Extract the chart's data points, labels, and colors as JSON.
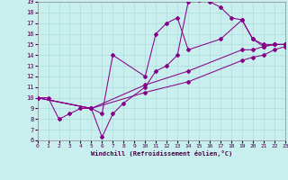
{
  "xlabel": "Windchill (Refroidissement éolien,°C)",
  "bg_color": "#c8eeee",
  "grid_color": "#aadddd",
  "line_color": "#880088",
  "tick_color": "#440044",
  "xlim": [
    0,
    23
  ],
  "ylim": [
    6,
    19
  ],
  "xticks": [
    0,
    1,
    2,
    3,
    4,
    5,
    6,
    7,
    8,
    9,
    10,
    11,
    12,
    13,
    14,
    15,
    16,
    17,
    18,
    19,
    20,
    21,
    22,
    23
  ],
  "yticks": [
    6,
    7,
    8,
    9,
    10,
    11,
    12,
    13,
    14,
    15,
    16,
    17,
    18,
    19
  ],
  "curve1_x": [
    0,
    1,
    2,
    3,
    4,
    5,
    6,
    7,
    8,
    10,
    11,
    12,
    13,
    14,
    15,
    16,
    17,
    18,
    19,
    20,
    21,
    22,
    23
  ],
  "curve1_y": [
    10,
    10,
    8,
    8.5,
    9,
    9,
    6.3,
    8.5,
    9.5,
    11,
    12.5,
    13,
    14,
    19,
    19.2,
    19,
    18.5,
    17.5,
    17.3,
    15.5,
    14.8,
    15,
    15
  ],
  "curve2_x": [
    0,
    5,
    6,
    7,
    10,
    11,
    12,
    13,
    14,
    17,
    19,
    20,
    21,
    22,
    23
  ],
  "curve2_y": [
    10,
    9,
    8.5,
    14,
    12,
    16,
    17,
    17.5,
    14.5,
    15.5,
    17.3,
    15.5,
    15,
    15,
    15
  ],
  "curve3_x": [
    0,
    5,
    10,
    14,
    19,
    20,
    21,
    22,
    23
  ],
  "curve3_y": [
    10,
    9,
    11.2,
    12.5,
    14.5,
    14.5,
    14.8,
    15,
    15
  ],
  "curve4_x": [
    0,
    5,
    10,
    14,
    19,
    20,
    21,
    22,
    23
  ],
  "curve4_y": [
    10,
    9,
    10.5,
    11.5,
    13.5,
    13.8,
    14,
    14.5,
    14.8
  ]
}
